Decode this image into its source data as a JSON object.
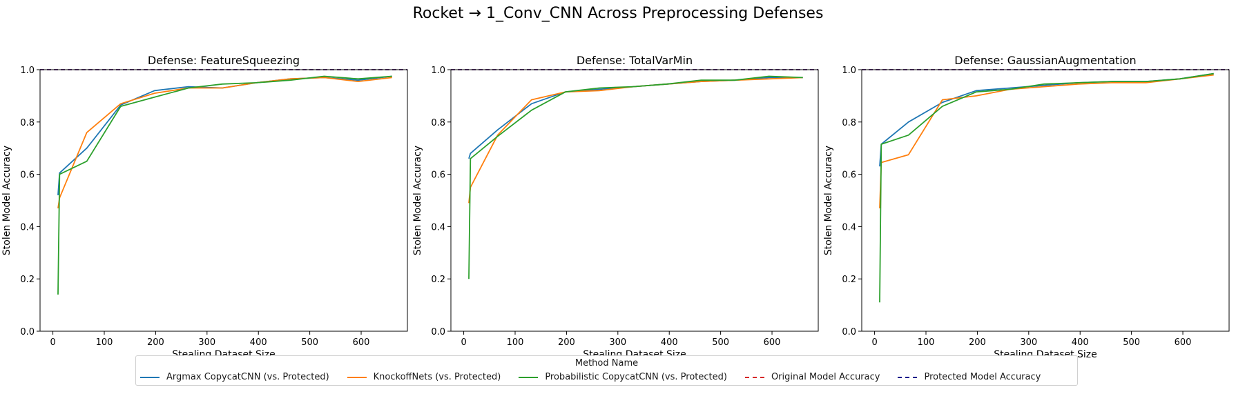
{
  "suptitle": "Rocket → 1_Conv_CNN Across Preprocessing Defenses",
  "colors": {
    "argmax": "#1f77b4",
    "knockoff": "#ff7f0e",
    "probabilistic": "#2ca02c",
    "original": "#d62728",
    "protected": "#00008b"
  },
  "legend": {
    "title": "Method Name",
    "items": [
      {
        "label": "Argmax CopycatCNN (vs. Protected)",
        "color": "#1f77b4",
        "style": "solid"
      },
      {
        "label": "KnockoffNets (vs. Protected)",
        "color": "#ff7f0e",
        "style": "solid"
      },
      {
        "label": "Probabilistic CopycatCNN (vs. Protected)",
        "color": "#2ca02c",
        "style": "solid"
      },
      {
        "label": "Original Model Accuracy",
        "color": "#d62728",
        "style": "dashed"
      },
      {
        "label": "Protected Model Accuracy",
        "color": "#00008b",
        "style": "dashed"
      }
    ]
  },
  "chart_data": [
    {
      "type": "line",
      "title": "Defense: FeatureSqueezing",
      "xlabel": "Stealing Dataset Size",
      "ylabel": "Stolen Model Accuracy",
      "xlim": [
        -25,
        690
      ],
      "ylim": [
        0,
        1
      ],
      "xticks": [
        0,
        100,
        200,
        300,
        400,
        500,
        600
      ],
      "yticks": [
        0.0,
        0.2,
        0.4,
        0.6,
        0.8,
        1.0
      ],
      "hlines": [
        {
          "name": "Original Model Accuracy",
          "y": 1.0,
          "color": "#d62728"
        },
        {
          "name": "Protected Model Accuracy",
          "y": 1.0,
          "color": "#00008b"
        }
      ],
      "series": [
        {
          "name": "Argmax CopycatCNN (vs. Protected)",
          "color": "#1f77b4",
          "x": [
            10,
            13,
            66,
            132,
            198,
            264,
            330,
            396,
            462,
            528,
            594,
            660
          ],
          "y": [
            0.52,
            0.605,
            0.7,
            0.865,
            0.92,
            0.935,
            0.93,
            0.95,
            0.965,
            0.97,
            0.96,
            0.975
          ]
        },
        {
          "name": "KnockoffNets (vs. Protected)",
          "color": "#ff7f0e",
          "x": [
            10,
            13,
            66,
            132,
            198,
            264,
            330,
            396,
            462,
            528,
            594,
            660
          ],
          "y": [
            0.47,
            0.51,
            0.76,
            0.87,
            0.91,
            0.93,
            0.93,
            0.95,
            0.965,
            0.97,
            0.955,
            0.97
          ]
        },
        {
          "name": "Probabilistic CopycatCNN (vs. Protected)",
          "color": "#2ca02c",
          "x": [
            10,
            13,
            66,
            132,
            198,
            264,
            330,
            396,
            462,
            528,
            594,
            660
          ],
          "y": [
            0.14,
            0.6,
            0.65,
            0.86,
            0.895,
            0.93,
            0.945,
            0.95,
            0.96,
            0.975,
            0.965,
            0.975
          ]
        }
      ]
    },
    {
      "type": "line",
      "title": "Defense: TotalVarMin",
      "xlabel": "Stealing Dataset Size",
      "ylabel": "Stolen Model Accuracy",
      "xlim": [
        -25,
        690
      ],
      "ylim": [
        0,
        1
      ],
      "xticks": [
        0,
        100,
        200,
        300,
        400,
        500,
        600
      ],
      "yticks": [
        0.0,
        0.2,
        0.4,
        0.6,
        0.8,
        1.0
      ],
      "hlines": [
        {
          "name": "Original Model Accuracy",
          "y": 1.0,
          "color": "#d62728"
        },
        {
          "name": "Protected Model Accuracy",
          "y": 1.0,
          "color": "#00008b"
        }
      ],
      "series": [
        {
          "name": "Argmax CopycatCNN (vs. Protected)",
          "color": "#1f77b4",
          "x": [
            10,
            13,
            66,
            132,
            198,
            264,
            330,
            396,
            462,
            528,
            594,
            660
          ],
          "y": [
            0.66,
            0.68,
            0.77,
            0.87,
            0.915,
            0.925,
            0.935,
            0.945,
            0.955,
            0.96,
            0.97,
            0.97
          ]
        },
        {
          "name": "KnockoffNets (vs. Protected)",
          "color": "#ff7f0e",
          "x": [
            10,
            13,
            66,
            132,
            198,
            264,
            330,
            396,
            462,
            528,
            594,
            660
          ],
          "y": [
            0.49,
            0.55,
            0.75,
            0.885,
            0.915,
            0.92,
            0.935,
            0.945,
            0.955,
            0.96,
            0.965,
            0.97
          ]
        },
        {
          "name": "Probabilistic CopycatCNN (vs. Protected)",
          "color": "#2ca02c",
          "x": [
            10,
            13,
            66,
            132,
            198,
            264,
            330,
            396,
            462,
            528,
            594,
            660
          ],
          "y": [
            0.2,
            0.66,
            0.745,
            0.845,
            0.915,
            0.93,
            0.935,
            0.945,
            0.96,
            0.96,
            0.975,
            0.97
          ]
        }
      ]
    },
    {
      "type": "line",
      "title": "Defense: GaussianAugmentation",
      "xlabel": "Stealing Dataset Size",
      "ylabel": "Stolen Model Accuracy",
      "xlim": [
        -25,
        690
      ],
      "ylim": [
        0,
        1
      ],
      "xticks": [
        0,
        100,
        200,
        300,
        400,
        500,
        600
      ],
      "yticks": [
        0.0,
        0.2,
        0.4,
        0.6,
        0.8,
        1.0
      ],
      "hlines": [
        {
          "name": "Original Model Accuracy",
          "y": 1.0,
          "color": "#d62728"
        },
        {
          "name": "Protected Model Accuracy",
          "y": 1.0,
          "color": "#00008b"
        }
      ],
      "series": [
        {
          "name": "Argmax CopycatCNN (vs. Protected)",
          "color": "#1f77b4",
          "x": [
            10,
            13,
            66,
            132,
            198,
            264,
            330,
            396,
            462,
            528,
            594,
            660
          ],
          "y": [
            0.63,
            0.715,
            0.8,
            0.875,
            0.92,
            0.93,
            0.94,
            0.95,
            0.955,
            0.955,
            0.965,
            0.985
          ]
        },
        {
          "name": "KnockoffNets (vs. Protected)",
          "color": "#ff7f0e",
          "x": [
            10,
            13,
            66,
            132,
            198,
            264,
            330,
            396,
            462,
            528,
            594,
            660
          ],
          "y": [
            0.47,
            0.645,
            0.675,
            0.885,
            0.9,
            0.925,
            0.935,
            0.945,
            0.95,
            0.95,
            0.965,
            0.98
          ]
        },
        {
          "name": "Probabilistic CopycatCNN (vs. Protected)",
          "color": "#2ca02c",
          "x": [
            10,
            13,
            66,
            132,
            198,
            264,
            330,
            396,
            462,
            528,
            594,
            660
          ],
          "y": [
            0.11,
            0.715,
            0.75,
            0.86,
            0.915,
            0.925,
            0.945,
            0.95,
            0.955,
            0.955,
            0.965,
            0.985
          ]
        }
      ]
    }
  ]
}
